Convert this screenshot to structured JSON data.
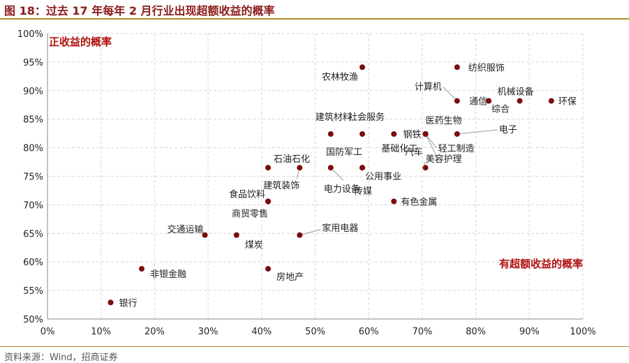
{
  "header": {
    "title": "图 18：过去 17 年每年 2 月行业出现超额收益的概率"
  },
  "footer": {
    "source": "资料来源：Wind，招商证券"
  },
  "chart_data": {
    "type": "scatter",
    "title": "",
    "xlabel": "有超额收益的概率",
    "ylabel": "正收益的概率",
    "xlim": [
      0,
      1
    ],
    "ylim": [
      0.5,
      1
    ],
    "xticks": [
      0,
      0.1,
      0.2,
      0.3,
      0.4,
      0.5,
      0.6,
      0.7,
      0.8,
      0.9,
      1
    ],
    "yticks": [
      0.5,
      0.55,
      0.6,
      0.65,
      0.7,
      0.75,
      0.8,
      0.85,
      0.9,
      0.95,
      1
    ],
    "tick_format": "percent",
    "grid": true,
    "marker_color": "#7b0c0c",
    "accent_color": "#b01010",
    "points": [
      {
        "label": "银行",
        "x": 0.118,
        "y": 0.529
      },
      {
        "label": "非银金融",
        "x": 0.176,
        "y": 0.588
      },
      {
        "label": "交通运输",
        "x": 0.294,
        "y": 0.647
      },
      {
        "label": "煤炭",
        "x": 0.353,
        "y": 0.647
      },
      {
        "label": "房地产",
        "x": 0.412,
        "y": 0.588
      },
      {
        "label": "家用电器",
        "x": 0.471,
        "y": 0.647
      },
      {
        "label": "食品饮料",
        "x": 0.412,
        "y": 0.706
      },
      {
        "label": "商贸零售",
        "x": 0.412,
        "y": 0.706
      },
      {
        "label": "石油石化",
        "x": 0.412,
        "y": 0.765
      },
      {
        "label": "建筑装饰",
        "x": 0.471,
        "y": 0.765
      },
      {
        "label": "电力设备",
        "x": 0.529,
        "y": 0.765
      },
      {
        "label": "公用事业",
        "x": 0.588,
        "y": 0.765
      },
      {
        "label": "国防军工",
        "x": 0.588,
        "y": 0.765
      },
      {
        "label": "传媒",
        "x": 0.588,
        "y": 0.765
      },
      {
        "label": "有色金属",
        "x": 0.647,
        "y": 0.706
      },
      {
        "label": "汽车",
        "x": 0.706,
        "y": 0.765
      },
      {
        "label": "建筑材料",
        "x": 0.529,
        "y": 0.824
      },
      {
        "label": "社会服务",
        "x": 0.588,
        "y": 0.824
      },
      {
        "label": "基础化工",
        "x": 0.647,
        "y": 0.824
      },
      {
        "label": "钢铁",
        "x": 0.706,
        "y": 0.824
      },
      {
        "label": "医药生物",
        "x": 0.706,
        "y": 0.824
      },
      {
        "label": "轻工制造",
        "x": 0.706,
        "y": 0.824
      },
      {
        "label": "美容护理",
        "x": 0.706,
        "y": 0.824
      },
      {
        "label": "电子",
        "x": 0.765,
        "y": 0.824
      },
      {
        "label": "农林牧渔",
        "x": 0.588,
        "y": 0.941
      },
      {
        "label": "纺织服饰",
        "x": 0.765,
        "y": 0.941
      },
      {
        "label": "计算机",
        "x": 0.765,
        "y": 0.882
      },
      {
        "label": "通信",
        "x": 0.824,
        "y": 0.882
      },
      {
        "label": "综合",
        "x": 0.824,
        "y": 0.882
      },
      {
        "label": "机械设备",
        "x": 0.882,
        "y": 0.882
      },
      {
        "label": "环保",
        "x": 0.941,
        "y": 0.882
      }
    ]
  }
}
